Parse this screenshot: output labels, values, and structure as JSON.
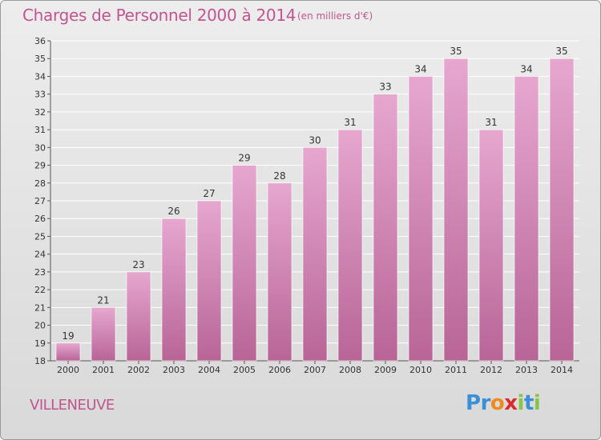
{
  "title": "Charges de Personnel 2000 à 2014",
  "subtitle": "(en milliers d'€)",
  "commune": "VILLENEUVE",
  "logo": {
    "letters": [
      "P",
      "r",
      "o",
      "x",
      "i",
      "t",
      "i"
    ],
    "colors": [
      "#3a8fd6",
      "#3a8fd6",
      "#f08a1c",
      "#d92b2b",
      "#8bc34a",
      "#3a8fd6",
      "#8bc34a"
    ]
  },
  "colors": {
    "bar_top": "#e6a7cf",
    "bar_bottom": "#b86596",
    "accent": "#c0558f",
    "grid": "#ffffff"
  },
  "chart_data": {
    "type": "bar",
    "categories": [
      "2000",
      "2001",
      "2002",
      "2003",
      "2004",
      "2005",
      "2006",
      "2007",
      "2008",
      "2009",
      "2010",
      "2011",
      "2012",
      "2013",
      "2014"
    ],
    "values": [
      19,
      21,
      23,
      26,
      27,
      29,
      28,
      30,
      31,
      33,
      34,
      35,
      31,
      34,
      35
    ],
    "title": "Charges de Personnel 2000 à 2014",
    "xlabel": "",
    "ylabel": "",
    "ylim": [
      18,
      36
    ],
    "yticks": [
      18,
      19,
      20,
      21,
      22,
      23,
      24,
      25,
      26,
      27,
      28,
      29,
      30,
      31,
      32,
      33,
      34,
      35,
      36
    ],
    "grid": true,
    "data_labels": true
  }
}
